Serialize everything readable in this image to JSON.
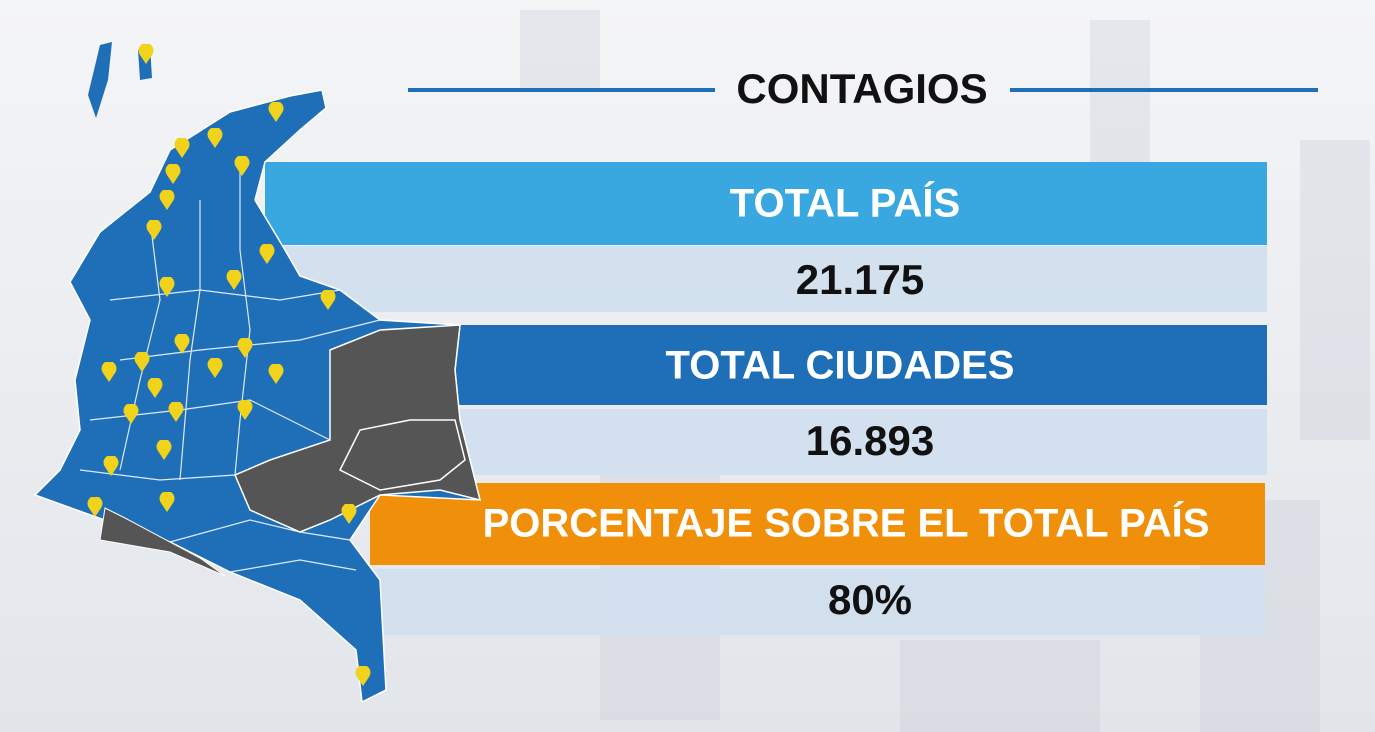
{
  "title": "CONTAGIOS",
  "rows": [
    {
      "label": "TOTAL PAÍS",
      "value": "21.175"
    },
    {
      "label": "TOTAL CIUDADES",
      "value": "16.893"
    },
    {
      "label": "PORCENTAJE SOBRE EL TOTAL PAÍS",
      "value": "80%"
    }
  ]
}
